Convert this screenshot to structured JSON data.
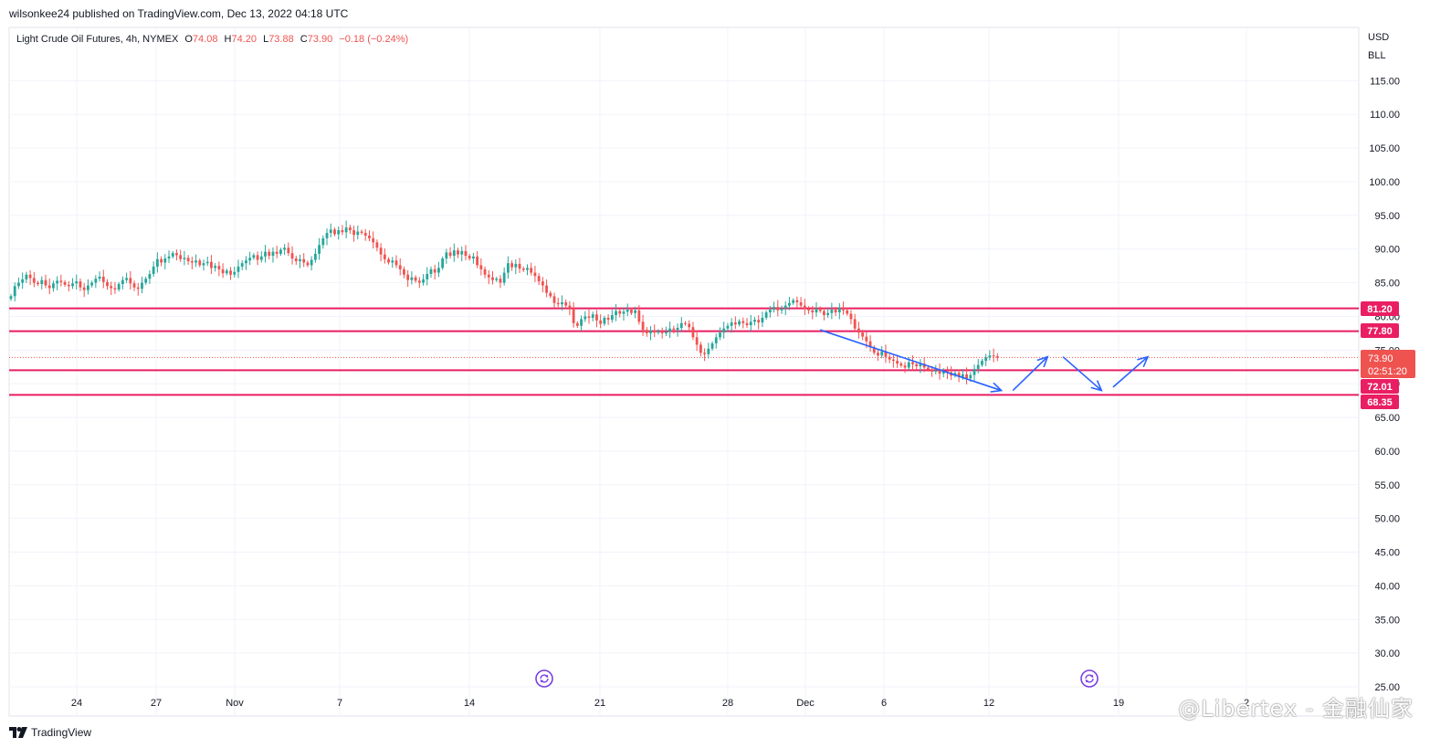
{
  "header": {
    "published": "wilsonkee24 published on TradingView.com, Dec 13, 2022 04:18 UTC"
  },
  "footer": {
    "brand": "TradingView",
    "watermark": "@Libertex - 金融仙家"
  },
  "icons": {
    "tv_logo": "tradingview-logo-icon",
    "event_marker": "dividend-event-icon"
  },
  "colors": {
    "up": "#26a69a",
    "down": "#ef5350",
    "level_line": "#e91e63",
    "arrow": "#2962ff",
    "event": "#7b3fe4"
  },
  "chart_data": {
    "type": "candlestick",
    "symbol_line": {
      "name": "Light Crude Oil Futures, 4h, NYMEX",
      "o_label": "O",
      "o": "74.08",
      "h_label": "H",
      "h": "74.20",
      "l_label": "L",
      "l": "73.88",
      "c_label": "C",
      "c": "73.90",
      "change": "−0.18 (−0.24%)"
    },
    "currency": "USD",
    "unit": "BLL",
    "ylim": [
      25,
      120
    ],
    "y_ticks": [
      "115.00",
      "110.00",
      "105.00",
      "100.00",
      "95.00",
      "90.00",
      "85.00",
      "80.00",
      "75.00",
      "70.00",
      "65.00",
      "60.00",
      "55.00",
      "50.00",
      "45.00",
      "40.00",
      "35.00",
      "30.00",
      "25.00"
    ],
    "x_ticks": [
      "24",
      "27",
      "Nov",
      "7",
      "14",
      "21",
      "28",
      "Dec",
      "6",
      "12",
      "19",
      "2"
    ],
    "last_price": {
      "value": 73.9,
      "label": "73.90",
      "countdown": "02:51:20"
    },
    "horizontal_levels": [
      {
        "value": 81.2,
        "label": "81.20"
      },
      {
        "value": 77.8,
        "label": "77.80"
      },
      {
        "value": 72.01,
        "label": "72.01"
      },
      {
        "value": 68.35,
        "label": "68.35"
      }
    ],
    "closes": [
      83.0,
      84.5,
      85.0,
      85.5,
      86.2,
      85.7,
      85.0,
      84.8,
      85.4,
      84.6,
      84.2,
      84.9,
      85.3,
      85.1,
      84.7,
      84.5,
      84.9,
      85.2,
      84.3,
      83.9,
      84.6,
      85.0,
      85.6,
      85.9,
      85.1,
      84.5,
      84.2,
      84.0,
      84.8,
      85.4,
      85.7,
      84.9,
      84.3,
      84.1,
      85.0,
      85.6,
      86.3,
      87.4,
      88.5,
      88.0,
      88.6,
      88.9,
      89.4,
      89.1,
      88.5,
      88.7,
      88.2,
      88.0,
      88.3,
      87.6,
      87.9,
      88.1,
      87.2,
      87.5,
      87.0,
      86.4,
      86.8,
      86.2,
      86.6,
      87.4,
      87.9,
      88.3,
      88.7,
      89.1,
      88.4,
      88.9,
      89.6,
      89.0,
      89.6,
      89.3,
      89.9,
      90.2,
      89.4,
      88.6,
      88.2,
      88.5,
      88.0,
      87.6,
      88.4,
      89.3,
      90.6,
      91.6,
      92.4,
      92.9,
      92.2,
      92.8,
      92.5,
      93.2,
      92.8,
      92.1,
      92.6,
      92.4,
      92.0,
      91.6,
      91.0,
      90.2,
      89.2,
      88.5,
      88.0,
      88.3,
      87.6,
      87.0,
      86.2,
      85.4,
      85.8,
      85.3,
      85.0,
      85.5,
      86.3,
      87.0,
      86.5,
      87.2,
      88.6,
      89.5,
      89.0,
      89.8,
      89.2,
      89.7,
      89.0,
      88.6,
      88.9,
      87.6,
      87.0,
      86.2,
      85.8,
      85.4,
      85.6,
      85.0,
      86.5,
      87.9,
      87.3,
      87.8,
      87.1,
      86.9,
      87.2,
      86.5,
      86.0,
      85.2,
      84.6,
      83.5,
      83.0,
      82.0,
      81.8,
      82.1,
      81.6,
      81.2,
      79.0,
      78.6,
      79.6,
      80.0,
      79.8,
      80.3,
      79.4,
      78.9,
      79.8,
      79.5,
      80.2,
      80.8,
      80.4,
      80.7,
      81.0,
      80.5,
      80.9,
      79.2,
      78.0,
      77.5,
      77.9,
      77.6,
      77.8,
      77.5,
      77.7,
      78.2,
      78.0,
      78.3,
      79.0,
      78.9,
      78.4,
      76.9,
      75.8,
      74.6,
      74.4,
      75.2,
      76.0,
      76.9,
      77.6,
      78.2,
      78.6,
      79.1,
      78.8,
      79.3,
      79.0,
      78.7,
      79.2,
      79.5,
      79.1,
      79.8,
      80.6,
      81.0,
      81.4,
      80.9,
      81.2,
      81.6,
      82.0,
      82.4,
      82.1,
      81.6,
      81.1,
      80.9,
      80.6,
      81.2,
      80.8,
      80.2,
      80.5,
      81.0,
      80.6,
      81.3,
      80.9,
      80.4,
      79.6,
      78.2,
      77.6,
      77.0,
      76.3,
      75.4,
      74.6,
      74.2,
      74.8,
      74.0,
      73.6,
      73.4,
      73.0,
      72.7,
      72.4,
      73.2,
      72.9,
      72.6,
      73.0,
      72.4,
      72.1,
      71.8,
      72.0,
      71.5,
      71.9,
      71.7,
      71.2,
      71.6,
      71.0,
      71.4,
      70.8,
      71.3,
      72.2,
      72.8,
      73.4,
      73.9,
      74.2,
      74.1,
      73.9
    ],
    "trend_arrows": [
      {
        "from": [
          210,
          78.0
        ],
        "to": [
          257,
          69.0
        ]
      },
      {
        "from": [
          260,
          69.0
        ],
        "to": [
          269,
          74.0
        ]
      },
      {
        "from": [
          273,
          74.0
        ],
        "to": [
          283,
          69.0
        ]
      },
      {
        "from": [
          286,
          69.5
        ],
        "to": [
          295,
          74.0
        ]
      }
    ],
    "event_markers": [
      "Nov 18",
      "Dec 16"
    ],
    "grid": true
  }
}
